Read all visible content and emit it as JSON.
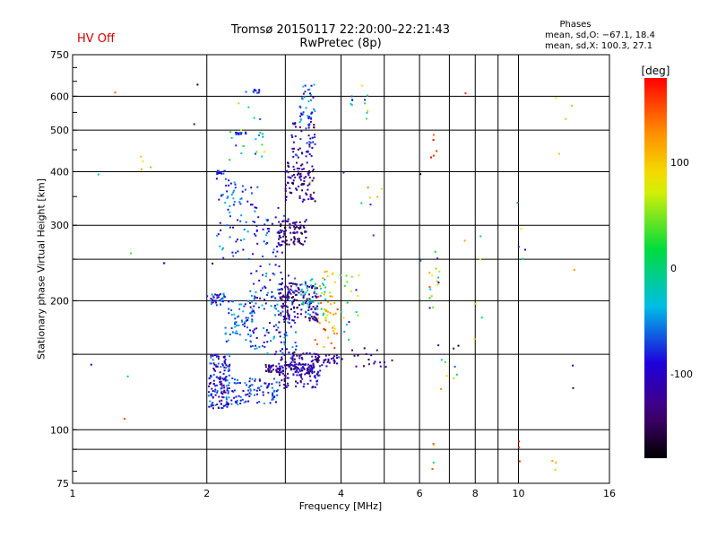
{
  "header": {
    "status": "HV Off",
    "title": "Tromsø 20150117 22:20:00–22:21:43",
    "subtitle": "RwPretec (8p)",
    "phases_title": "Phases",
    "phases_o": "mean, sd,O: −67.1, 18.4",
    "phases_x": "mean, sd,X: 100.3, 27.1"
  },
  "chart_data": {
    "type": "scatter",
    "xlabel": "Frequency [MHz]",
    "ylabel": "Stationary phase Virtual Height [km]",
    "x_scale": "log",
    "y_scale": "log",
    "xlim": [
      1,
      16
    ],
    "ylim": [
      75,
      750
    ],
    "x_ticks": [
      1,
      2,
      4,
      6,
      8,
      10,
      16
    ],
    "x_ticks_minor": [
      3,
      5,
      7,
      9
    ],
    "y_ticks": [
      75,
      100,
      200,
      300,
      400,
      500,
      600,
      750
    ],
    "y_ticks_minor": [
      90,
      150,
      250
    ],
    "grid": true,
    "colorbar": {
      "label": "[deg]",
      "range": [
        -180,
        180
      ],
      "ticks": [
        100,
        0,
        -100
      ]
    },
    "clusters": [
      {
        "x": [
          2.02,
          2.25
        ],
        "y": [
          112,
          150
        ],
        "n": 150,
        "p": [
          -140,
          -40
        ]
      },
      {
        "x": [
          2.25,
          2.9
        ],
        "y": [
          114,
          132
        ],
        "n": 90,
        "p": [
          -120,
          -40
        ]
      },
      {
        "x": [
          2.7,
          3.5
        ],
        "y": [
          136,
          142
        ],
        "n": 90,
        "p": [
          -160,
          -80
        ]
      },
      {
        "x": [
          2.9,
          3.6
        ],
        "y": [
          125,
          152
        ],
        "n": 130,
        "p": [
          -160,
          -70
        ]
      },
      {
        "x": [
          3.5,
          3.95
        ],
        "y": [
          140,
          150
        ],
        "n": 30,
        "p": [
          -150,
          -80
        ]
      },
      {
        "x": [
          2.0,
          2.2
        ],
        "y": [
          195,
          208
        ],
        "n": 35,
        "p": [
          -120,
          -40
        ]
      },
      {
        "x": [
          2.2,
          2.55
        ],
        "y": [
          160,
          200
        ],
        "n": 60,
        "p": [
          -100,
          -30
        ]
      },
      {
        "x": [
          2.5,
          3.2
        ],
        "y": [
          150,
          235
        ],
        "n": 140,
        "p": [
          -130,
          -30
        ]
      },
      {
        "x": [
          2.9,
          3.55
        ],
        "y": [
          178,
          220
        ],
        "n": 140,
        "p": [
          -170,
          -90
        ]
      },
      {
        "x": [
          3.25,
          3.7
        ],
        "y": [
          185,
          225
        ],
        "n": 45,
        "p": [
          -60,
          0
        ]
      },
      {
        "x": [
          3.55,
          3.9
        ],
        "y": [
          170,
          240
        ],
        "n": 30,
        "p": [
          60,
          130
        ]
      },
      {
        "x": [
          3.5,
          3.95
        ],
        "y": [
          150,
          210
        ],
        "n": 20,
        "p": [
          100,
          170
        ]
      },
      {
        "x": [
          2.1,
          2.6
        ],
        "y": [
          250,
          390
        ],
        "n": 80,
        "p": [
          -110,
          -30
        ]
      },
      {
        "x": [
          2.6,
          3.0
        ],
        "y": [
          240,
          330
        ],
        "n": 40,
        "p": [
          -120,
          -40
        ]
      },
      {
        "x": [
          2.9,
          3.35
        ],
        "y": [
          270,
          310
        ],
        "n": 80,
        "p": [
          -170,
          -100
        ]
      },
      {
        "x": [
          3.0,
          3.5
        ],
        "y": [
          340,
          420
        ],
        "n": 90,
        "p": [
          -170,
          -90
        ]
      },
      {
        "x": [
          3.1,
          3.5
        ],
        "y": [
          430,
          520
        ],
        "n": 50,
        "p": [
          -160,
          -60
        ]
      },
      {
        "x": [
          3.2,
          3.5
        ],
        "y": [
          520,
          640
        ],
        "n": 40,
        "p": [
          -110,
          -30
        ]
      },
      {
        "x": [
          2.1,
          2.2
        ],
        "y": [
          395,
          402
        ],
        "n": 14,
        "p": [
          -110,
          -60
        ]
      },
      {
        "x": [
          2.3,
          2.5
        ],
        "y": [
          488,
          494
        ],
        "n": 12,
        "p": [
          -110,
          -60
        ]
      },
      {
        "x": [
          2.45,
          2.65
        ],
        "y": [
          610,
          622
        ],
        "n": 10,
        "p": [
          -110,
          -50
        ]
      },
      {
        "x": [
          2.25,
          2.75
        ],
        "y": [
          420,
          580
        ],
        "n": 20,
        "p": [
          -100,
          100
        ]
      },
      {
        "x": [
          1.4,
          1.5
        ],
        "y": [
          390,
          470
        ],
        "n": 4,
        "p": [
          80,
          120
        ]
      },
      {
        "x": [
          1.6,
          1.62
        ],
        "y": [
          240,
          245
        ],
        "n": 2,
        "p": [
          -150,
          -120
        ]
      },
      {
        "x": [
          1.3,
          1.32
        ],
        "y": [
          105,
          107
        ],
        "n": 1,
        "p": [
          150,
          160
        ]
      },
      {
        "x": [
          3.9,
          4.4
        ],
        "y": [
          140,
          230
        ],
        "n": 20,
        "p": [
          -140,
          100
        ]
      },
      {
        "x": [
          4.2,
          5.3
        ],
        "y": [
          140,
          155
        ],
        "n": 18,
        "p": [
          -160,
          -90
        ]
      },
      {
        "x": [
          4.0,
          4.6
        ],
        "y": [
          520,
          640
        ],
        "n": 12,
        "p": [
          -110,
          130
        ]
      },
      {
        "x": [
          4.4,
          5.0
        ],
        "y": [
          330,
          370
        ],
        "n": 6,
        "p": [
          -140,
          150
        ]
      },
      {
        "x": [
          6.3,
          6.7
        ],
        "y": [
          180,
          270
        ],
        "n": 16,
        "p": [
          -170,
          170
        ]
      },
      {
        "x": [
          6.5,
          7.4
        ],
        "y": [
          120,
          160
        ],
        "n": 10,
        "p": [
          -170,
          170
        ]
      },
      {
        "x": [
          6.3,
          6.6
        ],
        "y": [
          410,
          560
        ],
        "n": 5,
        "p": [
          120,
          180
        ]
      },
      {
        "x": [
          7.6,
          7.8
        ],
        "y": [
          605,
          620
        ],
        "n": 1,
        "p": [
          160,
          175
        ]
      },
      {
        "x": [
          7.5,
          8.3
        ],
        "y": [
          150,
          300
        ],
        "n": 6,
        "p": [
          -140,
          160
        ]
      },
      {
        "x": [
          9.8,
          10.3
        ],
        "y": [
          230,
          370
        ],
        "n": 4,
        "p": [
          -100,
          170
        ]
      },
      {
        "x": [
          9.9,
          10.1
        ],
        "y": [
          80,
          95
        ],
        "n": 3,
        "p": [
          170,
          180
        ]
      },
      {
        "x": [
          11.7,
          12.5
        ],
        "y": [
          80,
          90
        ],
        "n": 3,
        "p": [
          100,
          120
        ]
      },
      {
        "x": [
          12.0,
          12.8
        ],
        "y": [
          330,
          600
        ],
        "n": 3,
        "p": [
          80,
          120
        ]
      },
      {
        "x": [
          6.3,
          6.5
        ],
        "y": [
          80,
          105
        ],
        "n": 4,
        "p": [
          -130,
          160
        ]
      },
      {
        "x": [
          1.0,
          16.0
        ],
        "y": [
          80,
          700
        ],
        "n": 20,
        "p": [
          -180,
          180
        ]
      }
    ]
  }
}
